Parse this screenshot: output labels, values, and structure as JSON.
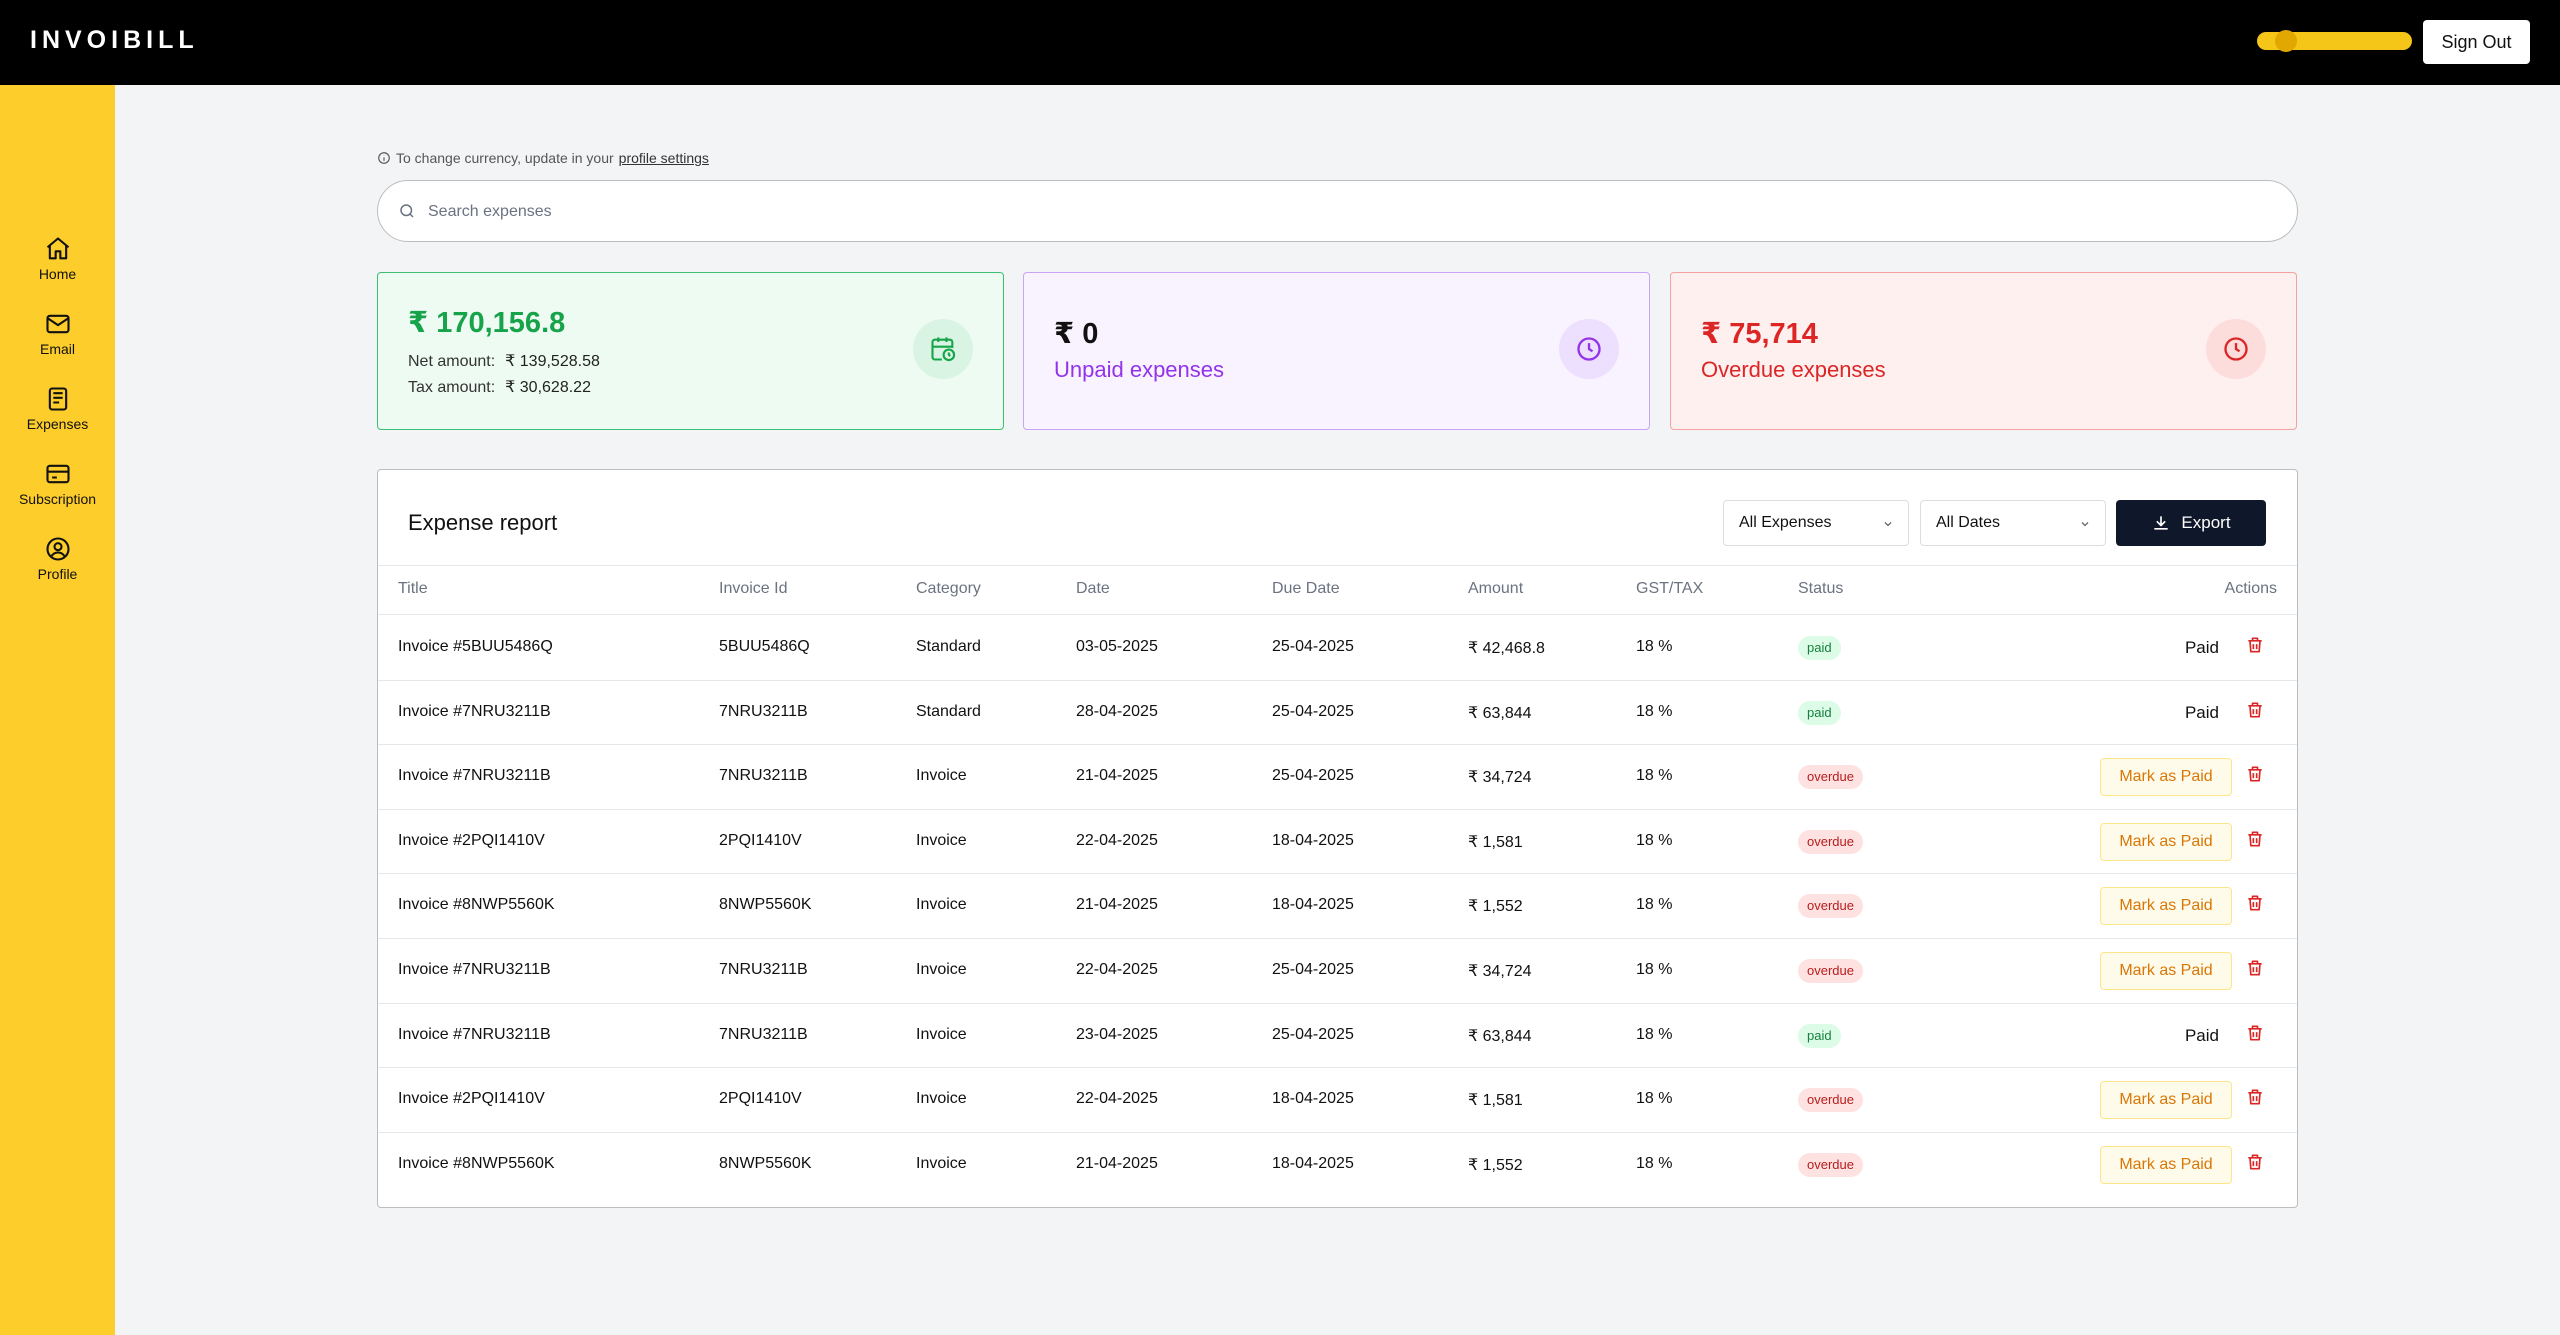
{
  "header": {
    "brand": "INVOIBILL",
    "sign_out": "Sign Out"
  },
  "sidebar": {
    "items": [
      {
        "label": "Home",
        "icon": "home-icon"
      },
      {
        "label": "Email",
        "icon": "mail-icon"
      },
      {
        "label": "Expenses",
        "icon": "receipt-icon"
      },
      {
        "label": "Subscription",
        "icon": "credit-card-icon"
      },
      {
        "label": "Profile",
        "icon": "user-circle-icon"
      }
    ]
  },
  "notice": {
    "text": "To change currency, update in your",
    "link": "profile settings"
  },
  "search": {
    "placeholder": "Search expenses"
  },
  "cards": {
    "total": {
      "amount": "₹ 170,156.8",
      "net_label": "Net amount:",
      "net_value": "₹ 139,528.58",
      "tax_label": "Tax amount:",
      "tax_value": "₹ 30,628.22"
    },
    "unpaid": {
      "amount": "₹ 0",
      "label": "Unpaid expenses"
    },
    "overdue": {
      "amount": "₹ 75,714",
      "label": "Overdue expenses"
    }
  },
  "report": {
    "title": "Expense report",
    "filter_expenses": "All Expenses",
    "filter_dates": "All Dates",
    "export": "Export",
    "columns": [
      "Title",
      "Invoice Id",
      "Category",
      "Date",
      "Due Date",
      "Amount",
      "GST/TAX",
      "Status",
      "Actions"
    ],
    "rows": [
      {
        "title": "Invoice #5BUU5486Q",
        "id": "5BUU5486Q",
        "category": "Standard",
        "date": "03-05-2025",
        "due": "25-04-2025",
        "amount": "₹ 42,468.8",
        "tax": "18 %",
        "status": "paid",
        "action": "Paid"
      },
      {
        "title": "Invoice #7NRU3211B",
        "id": "7NRU3211B",
        "category": "Standard",
        "date": "28-04-2025",
        "due": "25-04-2025",
        "amount": "₹ 63,844",
        "tax": "18 %",
        "status": "paid",
        "action": "Paid"
      },
      {
        "title": "Invoice #7NRU3211B",
        "id": "7NRU3211B",
        "category": "Invoice",
        "date": "21-04-2025",
        "due": "25-04-2025",
        "amount": "₹ 34,724",
        "tax": "18 %",
        "status": "overdue",
        "action": "Mark as Paid"
      },
      {
        "title": "Invoice #2PQI1410V",
        "id": "2PQI1410V",
        "category": "Invoice",
        "date": "22-04-2025",
        "due": "18-04-2025",
        "amount": "₹ 1,581",
        "tax": "18 %",
        "status": "overdue",
        "action": "Mark as Paid"
      },
      {
        "title": "Invoice #8NWP5560K",
        "id": "8NWP5560K",
        "category": "Invoice",
        "date": "21-04-2025",
        "due": "18-04-2025",
        "amount": "₹ 1,552",
        "tax": "18 %",
        "status": "overdue",
        "action": "Mark as Paid"
      },
      {
        "title": "Invoice #7NRU3211B",
        "id": "7NRU3211B",
        "category": "Invoice",
        "date": "22-04-2025",
        "due": "25-04-2025",
        "amount": "₹ 34,724",
        "tax": "18 %",
        "status": "overdue",
        "action": "Mark as Paid"
      },
      {
        "title": "Invoice #7NRU3211B",
        "id": "7NRU3211B",
        "category": "Invoice",
        "date": "23-04-2025",
        "due": "25-04-2025",
        "amount": "₹ 63,844",
        "tax": "18 %",
        "status": "paid",
        "action": "Paid"
      },
      {
        "title": "Invoice #2PQI1410V",
        "id": "2PQI1410V",
        "category": "Invoice",
        "date": "22-04-2025",
        "due": "18-04-2025",
        "amount": "₹ 1,581",
        "tax": "18 %",
        "status": "overdue",
        "action": "Mark as Paid"
      },
      {
        "title": "Invoice #8NWP5560K",
        "id": "8NWP5560K",
        "category": "Invoice",
        "date": "21-04-2025",
        "due": "18-04-2025",
        "amount": "₹ 1,552",
        "tax": "18 %",
        "status": "overdue",
        "action": "Mark as Paid"
      }
    ]
  },
  "colors": {
    "accent": "#fdcd2b",
    "topbar": "#000000",
    "paid": "#15803d",
    "overdue": "#b91c1c",
    "unpaid": "#9333ea"
  }
}
